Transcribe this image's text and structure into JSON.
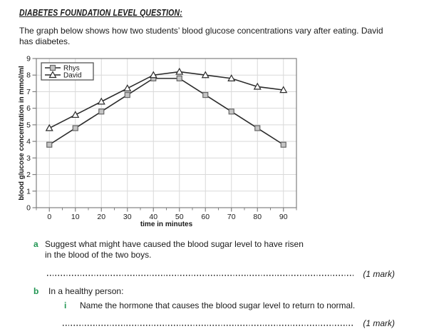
{
  "page": {
    "title": "DIABETES FOUNDATION LEVEL QUESTION:",
    "intro_line1": "The graph below shows how two students’ blood glucose concentrations vary after eating. David",
    "intro_line2": "has diabetes."
  },
  "chart_data": {
    "type": "line",
    "title": "",
    "xlabel": "time in minutes",
    "ylabel": "blood glucose concentration in mmol/ml",
    "x": [
      0,
      10,
      20,
      30,
      40,
      50,
      60,
      70,
      80,
      90
    ],
    "series": [
      {
        "name": "Rhys",
        "marker": "square",
        "values": [
          3.8,
          4.8,
          5.8,
          6.8,
          7.8,
          7.8,
          6.8,
          5.8,
          4.8,
          3.8
        ]
      },
      {
        "name": "David",
        "marker": "triangle",
        "values": [
          4.8,
          5.6,
          6.4,
          7.2,
          8.0,
          8.2,
          8.0,
          7.8,
          7.3,
          7.1
        ]
      }
    ],
    "xlim": [
      -5,
      95
    ],
    "ylim": [
      0,
      9
    ],
    "xticks": [
      0,
      10,
      20,
      30,
      40,
      50,
      60,
      70,
      80,
      90
    ],
    "yticks": [
      0,
      1,
      2,
      3,
      4,
      5,
      6,
      7,
      8,
      9
    ],
    "grid": true,
    "legend_position": "top-left"
  },
  "questions": {
    "a": {
      "label": "a",
      "line1": "Suggest what might have caused the blood sugar level to have risen",
      "line2": "in the blood of the two boys.",
      "mark": "(1 mark)"
    },
    "b": {
      "label": "b",
      "text": "In a healthy person:",
      "i": {
        "label": "i",
        "text": "Name the hormone that causes the blood sugar level to return to normal.",
        "mark": "(1 mark)"
      }
    }
  },
  "colors": {
    "question_label": "#219653",
    "series_line": "#2b2b2b",
    "grid": "#d9d9d9",
    "frame": "#808080",
    "square_fill": "#c4c4c4",
    "square_stroke": "#666666",
    "triangle_fill": "#ffffff",
    "text": "#1a1a1a"
  }
}
